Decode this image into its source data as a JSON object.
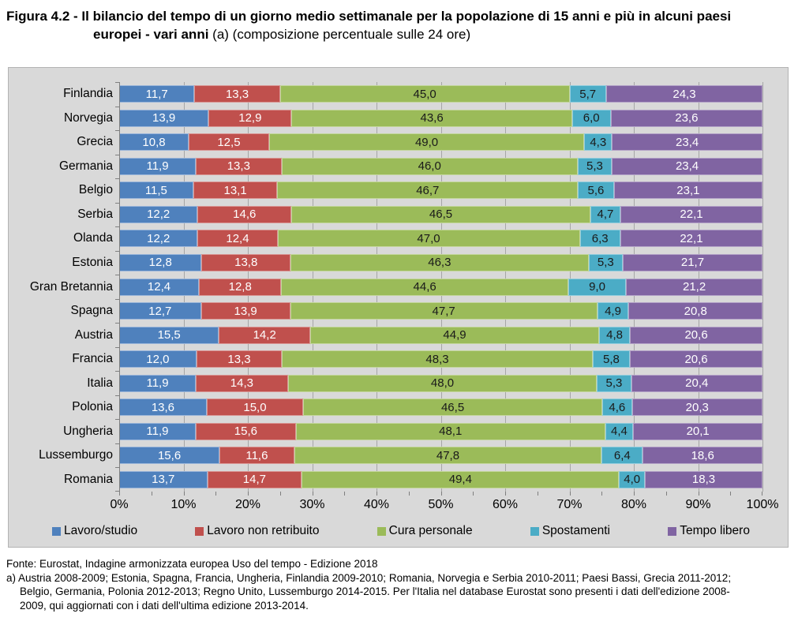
{
  "title": {
    "line1": "Figura 4.2 - Il bilancio del tempo di un giorno medio settimanale per la popolazione di 15 anni e più in alcuni paesi",
    "line2_bold": "europei - vari anni",
    "line2_regular": "(a) (composizione percentuale sulle 24 ore)"
  },
  "chart_data": {
    "type": "bar",
    "stacked": true,
    "orientation": "horizontal",
    "title": "Figura 4.2 - Il bilancio del tempo di un giorno medio settimanale per la popolazione di 15 anni e più in alcuni paesi europei - vari anni (a) (composizione percentuale sulle 24 ore)",
    "categories": [
      "Finlandia",
      "Norvegia",
      "Grecia",
      "Germania",
      "Belgio",
      "Serbia",
      "Olanda",
      "Estonia",
      "Gran Bretannia",
      "Spagna",
      "Austria",
      "Francia",
      "Italia",
      "Polonia",
      "Ungheria",
      "Lussemburgo",
      "Romania"
    ],
    "series": [
      {
        "name": "Lavoro/studio",
        "color": "#4F81BD",
        "border_color": "#9AB5D9",
        "label_color": "#FFFFFF",
        "values": [
          11.7,
          13.9,
          10.8,
          11.9,
          11.5,
          12.2,
          12.2,
          12.8,
          12.4,
          12.7,
          15.5,
          12.0,
          11.9,
          13.6,
          11.9,
          15.6,
          13.7
        ]
      },
      {
        "name": "Lavoro non retribuito",
        "color": "#C0504D",
        "border_color": "#D99694",
        "label_color": "#FFFFFF",
        "values": [
          13.3,
          12.9,
          12.5,
          13.3,
          13.1,
          14.6,
          12.4,
          13.8,
          12.8,
          13.9,
          14.2,
          13.3,
          14.3,
          15.0,
          15.6,
          11.6,
          14.7
        ]
      },
      {
        "name": "Cura personale",
        "color": "#9BBB59",
        "border_color": "#C3D69B",
        "label_color": "#1A1A1A",
        "values": [
          45.0,
          43.6,
          49.0,
          46.0,
          46.7,
          46.5,
          47.0,
          46.3,
          44.6,
          47.7,
          44.9,
          48.3,
          48.0,
          46.5,
          48.1,
          47.8,
          49.4
        ]
      },
      {
        "name": "Spostamenti",
        "color": "#4BACC6",
        "border_color": "#93CDDD",
        "label_color": "#1A1A1A",
        "values": [
          5.7,
          6.0,
          4.3,
          5.3,
          5.6,
          4.7,
          6.3,
          5.3,
          9.0,
          4.9,
          4.8,
          5.8,
          5.3,
          4.6,
          4.4,
          6.4,
          4.0
        ]
      },
      {
        "name": "Tempo libero",
        "color": "#8064A2",
        "border_color": "#B3A2C7",
        "label_color": "#FFFFFF",
        "values": [
          24.3,
          23.6,
          23.4,
          23.4,
          23.1,
          22.1,
          22.1,
          21.7,
          21.2,
          20.8,
          20.6,
          20.6,
          20.4,
          20.3,
          20.1,
          18.6,
          18.3
        ]
      }
    ],
    "xlim": [
      0,
      100
    ],
    "x_tick_labels": [
      "0%",
      "10%",
      "20%",
      "30%",
      "40%",
      "50%",
      "60%",
      "70%",
      "80%",
      "90%",
      "100%"
    ],
    "x_major_step": 10,
    "x_minor_step": 5,
    "grid": "vertical major gridlines every 10%",
    "legend_position": "bottom",
    "plot_background": "#D9D9D9",
    "decimal_separator": ","
  },
  "footer": {
    "fonte": "Fonte: Eurostat, Indagine armonizzata europea Uso del tempo - Edizione 2018",
    "note_lines": [
      "a) Austria 2008-2009; Estonia, Spagna, Francia, Ungheria, Finlandia 2009-2010; Romania, Norvegia e Serbia 2010-2011; Paesi Bassi, Grecia 2011-2012;",
      "Belgio, Germania, Polonia 2012-2013; Regno Unito, Lussemburgo 2014-2015. Per l'Italia nel database Eurostat sono presenti i dati dell'edizione 2008-",
      "2009, qui aggiornati con i dati dell'ultima edizione 2013-2014."
    ]
  }
}
